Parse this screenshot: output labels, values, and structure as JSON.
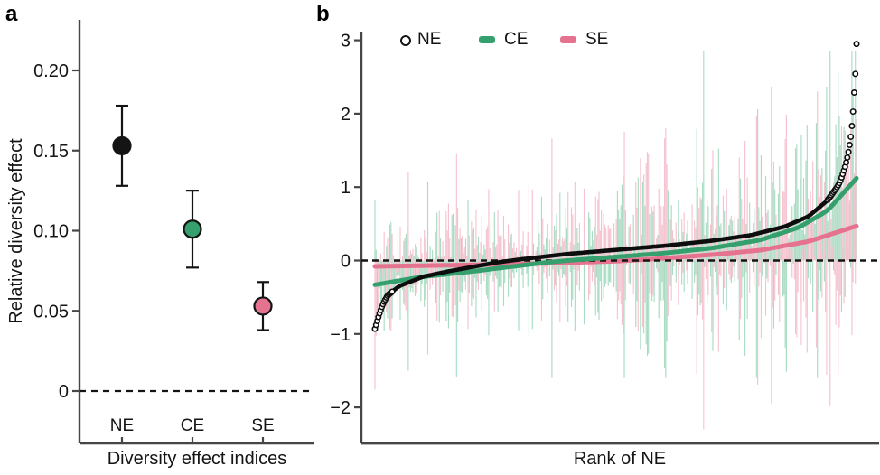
{
  "panel_labels": {
    "a": "a",
    "b": "b"
  },
  "colors": {
    "ne": "#141414",
    "ce": "#35a06d",
    "se": "#e5738f",
    "ce_spike": "#a5dbc0",
    "se_spike": "#f5c0ce",
    "axis": "#464646",
    "text": "#141414"
  },
  "chart_data": [
    {
      "panel": "a",
      "type": "scatter",
      "xlabel": "Diversity effect indices",
      "ylabel": "Relative diversity effect",
      "categories": [
        "NE",
        "CE",
        "SE"
      ],
      "values": [
        0.153,
        0.101,
        0.053
      ],
      "ci_low": [
        0.128,
        0.077,
        0.038
      ],
      "ci_high": [
        0.178,
        0.125,
        0.068
      ],
      "point_colors": [
        "#141414",
        "#35a06d",
        "#e5738f"
      ],
      "yticks": [
        0.2,
        0.15,
        0.1,
        0.05,
        0
      ],
      "ytick_labels": [
        "0.20",
        "0.15",
        "0.10",
        "0.05",
        "0"
      ],
      "ylim": [
        -0.033,
        0.232
      ],
      "zero_line": "dashed",
      "grid": false
    },
    {
      "panel": "b",
      "type": "line",
      "xlabel": "Rank of NE",
      "ylabel": "",
      "legend": [
        {
          "label": "NE",
          "marker": "open-circle",
          "color": "#141414"
        },
        {
          "label": "CE",
          "marker": "band",
          "color": "#35a06d"
        },
        {
          "label": "SE",
          "marker": "band",
          "color": "#e5738f"
        }
      ],
      "yticks": [
        3,
        2,
        1,
        0,
        -1,
        -2
      ],
      "ytick_labels": [
        "3",
        "2",
        "1",
        "0",
        "−1",
        "−2"
      ],
      "ylim": [
        -2.5,
        3.1
      ],
      "zero_line": "dashed",
      "grid": false,
      "n_points": 420,
      "series": {
        "ne_sorted_curve": [
          [
            0,
            -0.93
          ],
          [
            0.005,
            -0.82
          ],
          [
            0.012,
            -0.66
          ],
          [
            0.025,
            -0.48
          ],
          [
            0.05,
            -0.35
          ],
          [
            0.1,
            -0.22
          ],
          [
            0.15,
            -0.15
          ],
          [
            0.2,
            -0.09
          ],
          [
            0.25,
            -0.03
          ],
          [
            0.3,
            0.015
          ],
          [
            0.4,
            0.09
          ],
          [
            0.5,
            0.145
          ],
          [
            0.6,
            0.2
          ],
          [
            0.7,
            0.27
          ],
          [
            0.78,
            0.345
          ],
          [
            0.85,
            0.46
          ],
          [
            0.9,
            0.6
          ],
          [
            0.94,
            0.82
          ],
          [
            0.965,
            1.05
          ],
          [
            0.98,
            1.35
          ],
          [
            0.988,
            1.65
          ],
          [
            0.993,
            1.95
          ],
          [
            0.996,
            2.3
          ],
          [
            0.998,
            2.6
          ],
          [
            1,
            2.95
          ]
        ],
        "ce_trend": [
          [
            0,
            -0.33
          ],
          [
            0.1,
            -0.22
          ],
          [
            0.2,
            -0.15
          ],
          [
            0.3,
            -0.07
          ],
          [
            0.35,
            -0.03
          ],
          [
            0.4,
            0.0
          ],
          [
            0.5,
            0.05
          ],
          [
            0.6,
            0.1
          ],
          [
            0.7,
            0.17
          ],
          [
            0.8,
            0.28
          ],
          [
            0.88,
            0.45
          ],
          [
            0.94,
            0.68
          ],
          [
            1,
            1.12
          ]
        ],
        "se_trend": [
          [
            0,
            -0.08
          ],
          [
            0.2,
            -0.06
          ],
          [
            0.35,
            -0.04
          ],
          [
            0.5,
            -0.01
          ],
          [
            0.6,
            0.03
          ],
          [
            0.7,
            0.08
          ],
          [
            0.8,
            0.14
          ],
          [
            0.9,
            0.26
          ],
          [
            1,
            0.47
          ]
        ]
      },
      "spikes": {
        "relation": "SE spike = NE − CE spike at each rank",
        "seed": 7,
        "noise_sd_base": 0.42,
        "noise_sd_slope": 0.5,
        "outlier_chance": 0.08,
        "outlier_mult": 2.2
      }
    }
  ]
}
